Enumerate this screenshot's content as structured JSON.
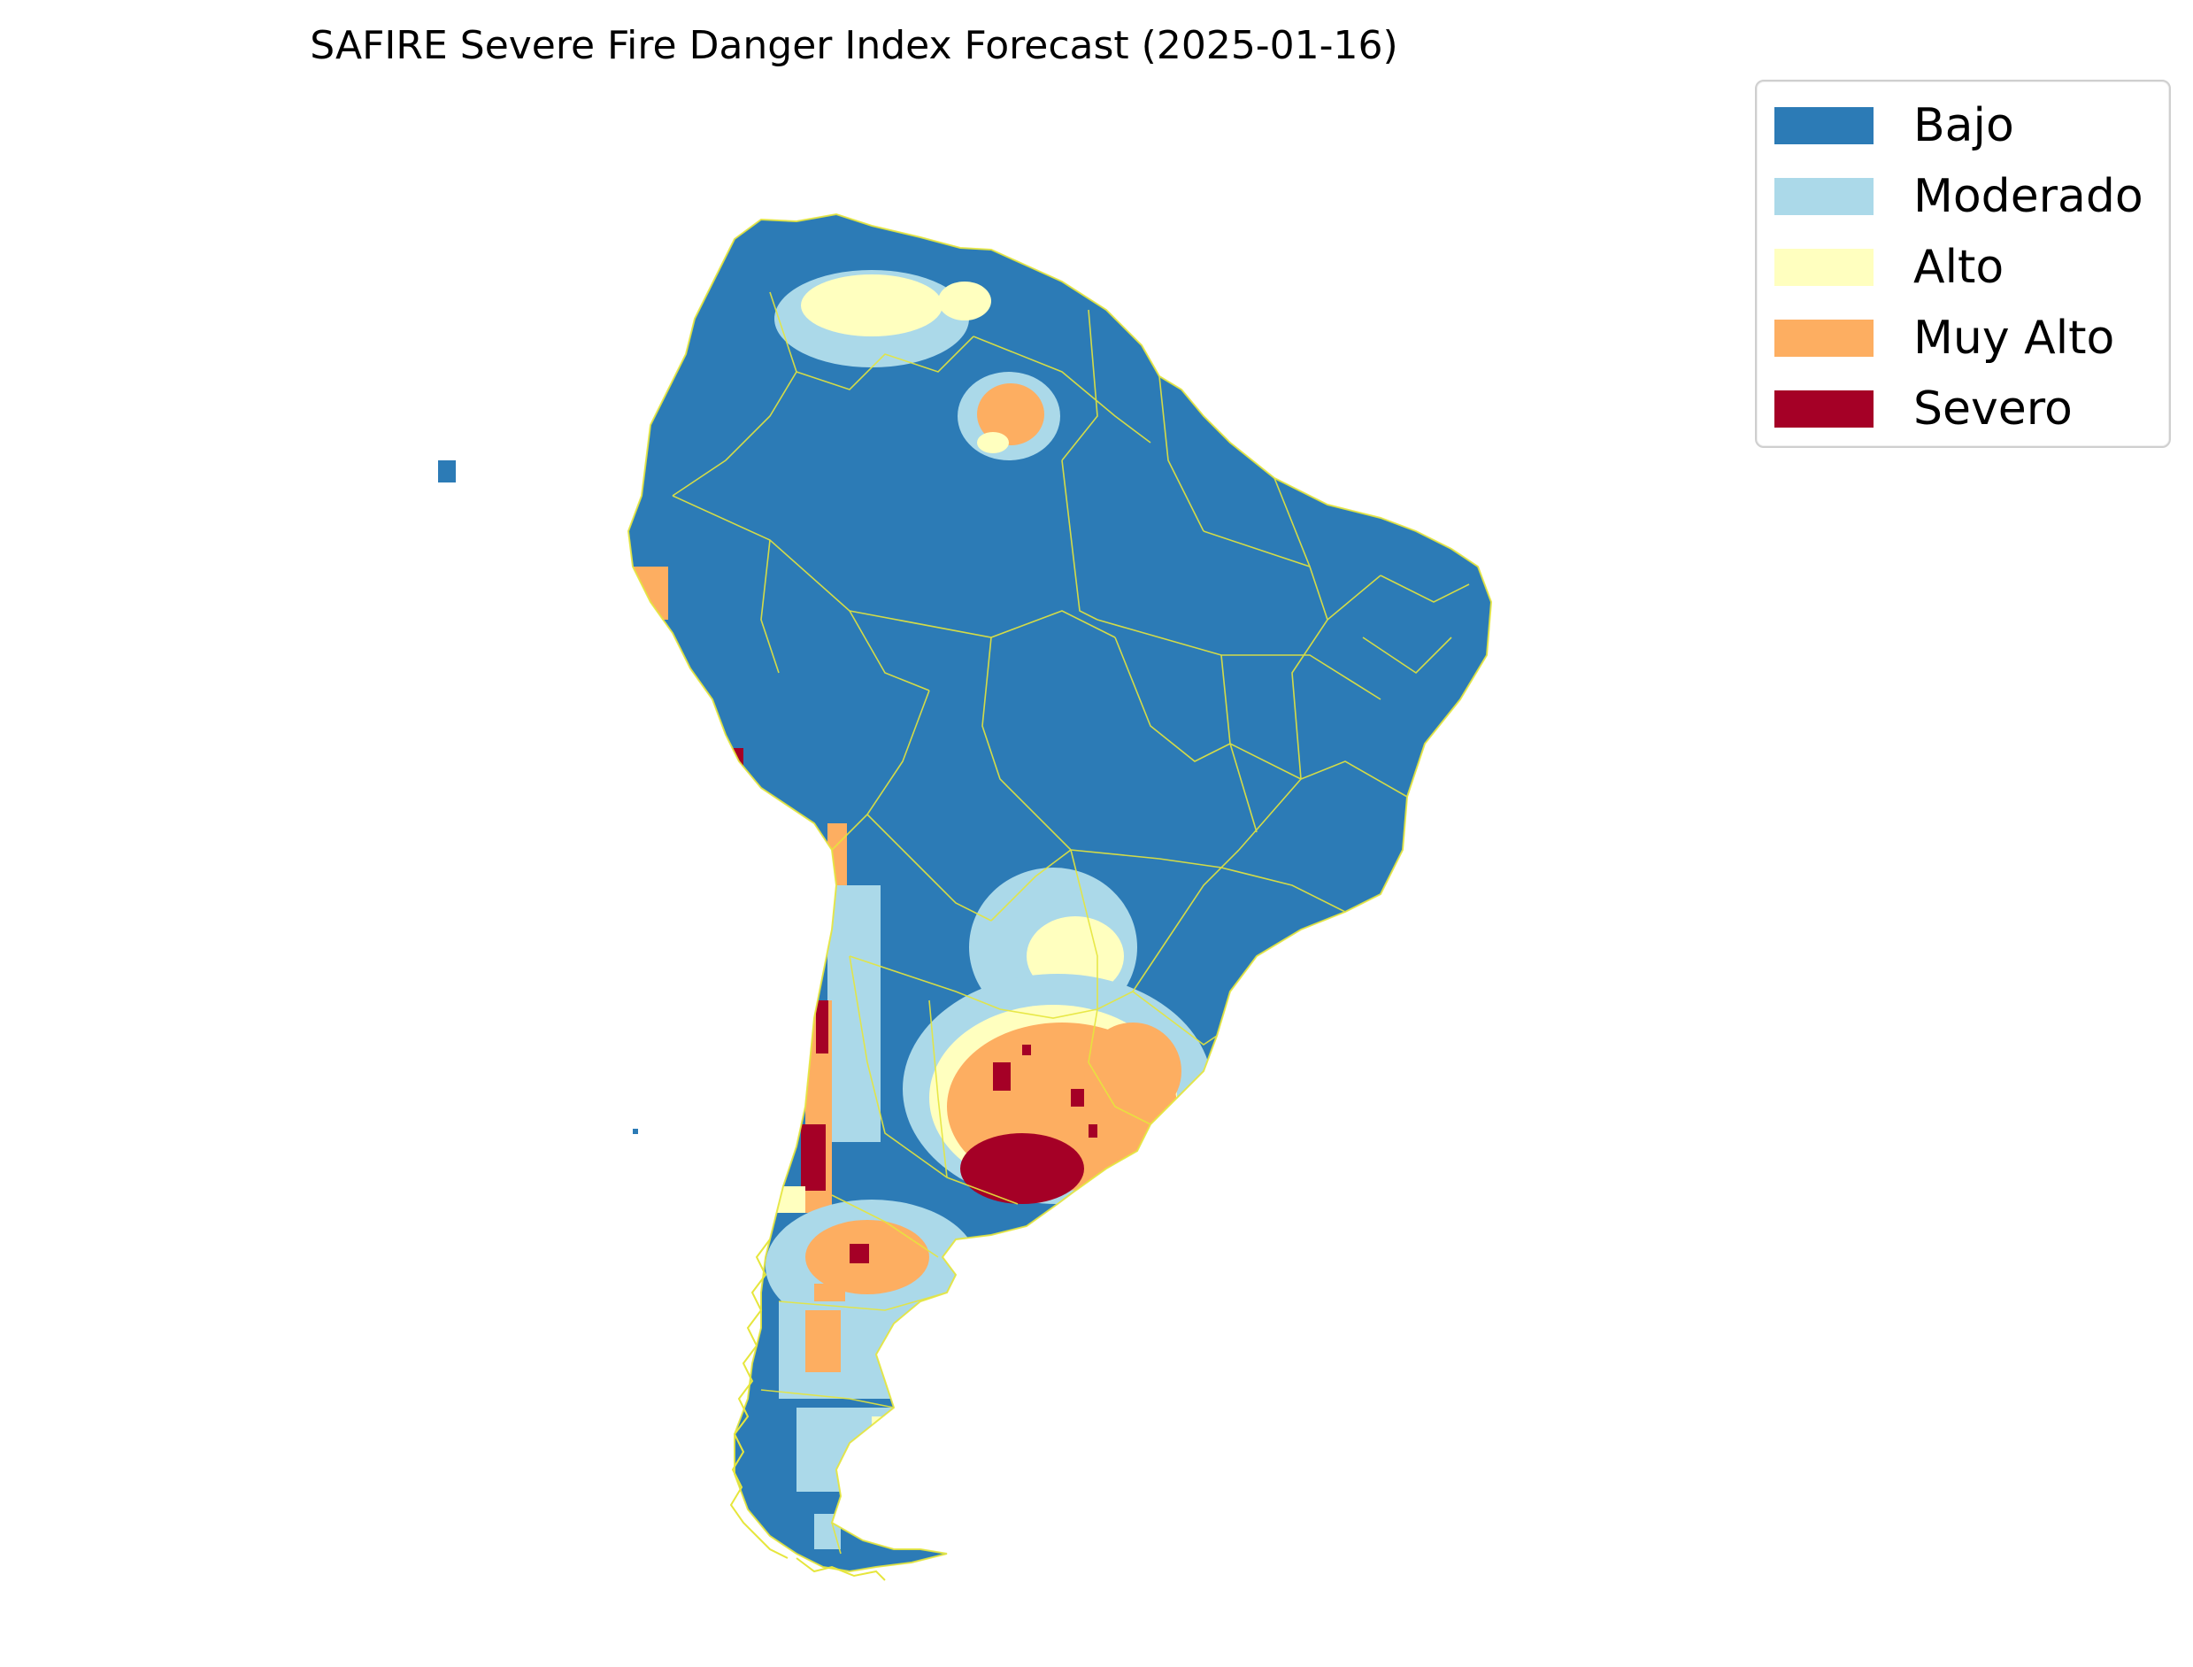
{
  "title": "SAFIRE Severe Fire Danger Index Forecast (2025-01-16)",
  "legend": {
    "items": [
      {
        "label": "Bajo",
        "color": "#2c7bb6"
      },
      {
        "label": "Moderado",
        "color": "#abd9e9"
      },
      {
        "label": "Alto",
        "color": "#ffffbf"
      },
      {
        "label": "Muy Alto",
        "color": "#fdae61"
      },
      {
        "label": "Severo",
        "color": "#a50026"
      }
    ]
  },
  "colors": {
    "border_lines": "#e6e63c"
  }
}
